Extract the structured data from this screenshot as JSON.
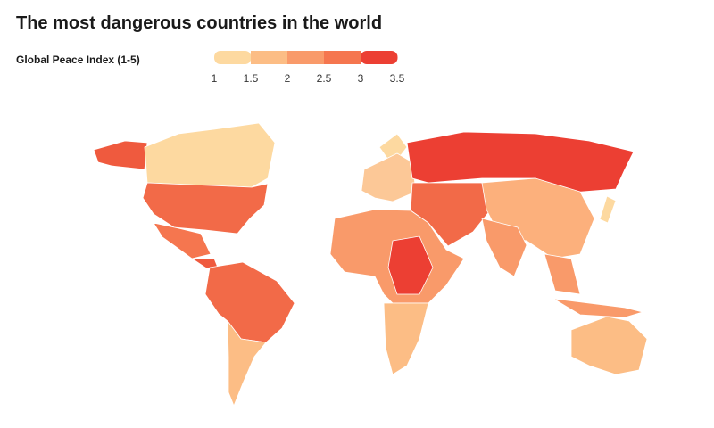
{
  "title": "The most dangerous countries in the world",
  "legend": {
    "label": "Global Peace Index (1-5)",
    "ticks": [
      1,
      1.5,
      2,
      2.5,
      3,
      3.5
    ],
    "colors": [
      "#fdd9a0",
      "#fcbd85",
      "#f99a6a",
      "#f5764f",
      "#ec3f33"
    ]
  }
}
